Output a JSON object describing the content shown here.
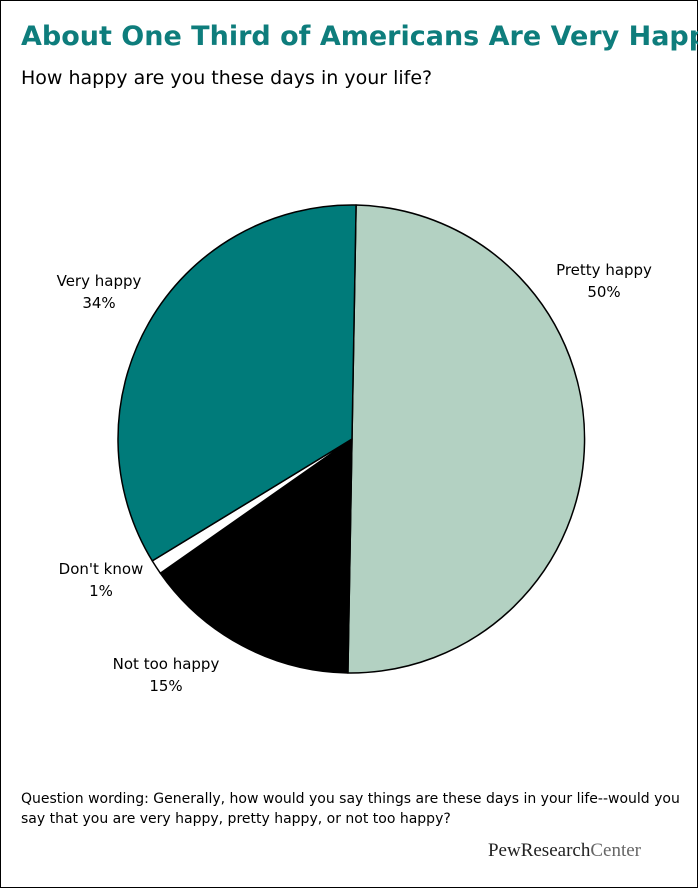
{
  "header": {
    "title": "About One Third of Americans Are Very Happy",
    "subtitle": "How happy are you these days in your life?"
  },
  "chart_data": {
    "type": "pie",
    "title": "About One Third of Americans Are Very Happy",
    "subtitle": "How happy are you these days in your life?",
    "start_angle_deg": 1,
    "direction": "clockwise",
    "slices": [
      {
        "label": "Pretty happy",
        "value_label": "50%",
        "value": 50,
        "color": "#b3d1c2"
      },
      {
        "label": "Not too happy",
        "value_label": "15%",
        "value": 15,
        "color": "#000000"
      },
      {
        "label": "Don't know",
        "value_label": "1%",
        "value": 1,
        "color": "#ffffff"
      },
      {
        "label": "Very happy",
        "value_label": "34%",
        "value": 34,
        "color": "#007b7a"
      }
    ]
  },
  "footer": {
    "note": "Question wording: Generally, how would you say things are these days in your life--would you say that you are very happy, pretty happy, or not too happy?",
    "brand_strong": "PewResearch",
    "brand_light": "Center"
  }
}
